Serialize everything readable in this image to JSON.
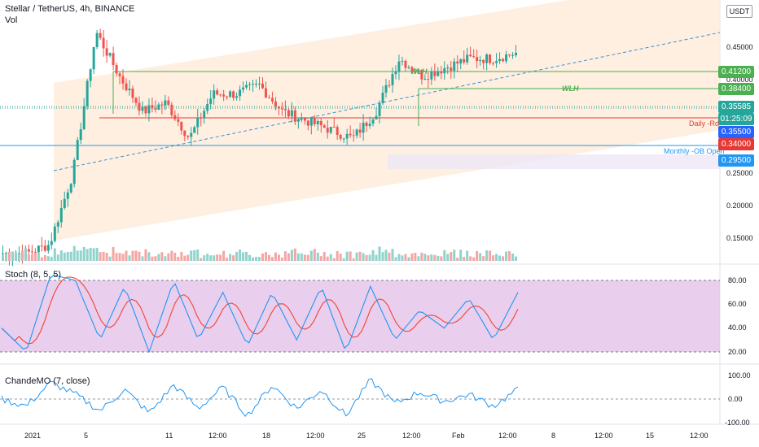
{
  "header": {
    "title": "Stellar / TetherUS, 4h, BINANCE",
    "volume_label": "Vol"
  },
  "currency_badge": "USDT",
  "price_axis": {
    "ticks": [
      "0.45000",
      "0.40000",
      "0.35000",
      "0.30000",
      "0.25000",
      "0.20000",
      "0.15000"
    ],
    "tags": [
      {
        "text": "0.41200",
        "color": "#4caf50"
      },
      {
        "text": "0.38400",
        "color": "#4caf50"
      },
      {
        "text": "0.35585",
        "color": "#26a69a"
      },
      {
        "text": "01:25:09",
        "color": "#26a69a"
      },
      {
        "text": "0.35500",
        "color": "#ffffff"
      },
      {
        "text": "0.34000",
        "color": "#e53935"
      },
      {
        "text": "0.29500",
        "color": "#2196f3"
      }
    ]
  },
  "annotations": {
    "wlh1": "WLH",
    "wlh2": "WLH",
    "daily_rd": "Daily -Rd",
    "monthly_ob": "Monthly -OB Open"
  },
  "stoch": {
    "label": "Stoch (8, 5, 5)",
    "ticks": [
      "80.00",
      "60.00",
      "40.00",
      "20.00"
    ]
  },
  "chande": {
    "label": "ChandeMO (7, close)",
    "ticks": [
      "100.00",
      "0.00",
      "-100.00"
    ]
  },
  "time_axis": [
    "2021",
    "5",
    "11",
    "12:00",
    "18",
    "12:00",
    "25",
    "12:00",
    "Feb",
    "12:00",
    "8",
    "12:00",
    "15",
    "12:00"
  ],
  "chart_data": {
    "type": "candlestick",
    "symbol": "Stellar / TetherUS, 4h, BINANCE",
    "price_levels": [
      0.412,
      0.384,
      0.35585,
      0.355,
      0.34,
      0.295
    ],
    "approx_close_path": [
      0.13,
      0.13,
      0.14,
      0.22,
      0.38,
      0.33,
      0.29,
      0.3,
      0.26,
      0.31,
      0.31,
      0.32,
      0.29,
      0.28,
      0.27,
      0.26,
      0.29,
      0.35,
      0.33,
      0.34,
      0.35,
      0.35,
      0.356
    ],
    "stoch_k_path": [
      40,
      20,
      85,
      80,
      30,
      75,
      20,
      80,
      30,
      70,
      25,
      70,
      30,
      75,
      20,
      75,
      30,
      55,
      40,
      65,
      30,
      70
    ],
    "chande_path": [
      0,
      -30,
      70,
      20,
      -50,
      40,
      -60,
      60,
      -40,
      50,
      -70,
      60,
      -40,
      40,
      -70,
      80,
      -20,
      30,
      -10,
      20,
      -30,
      40
    ]
  }
}
